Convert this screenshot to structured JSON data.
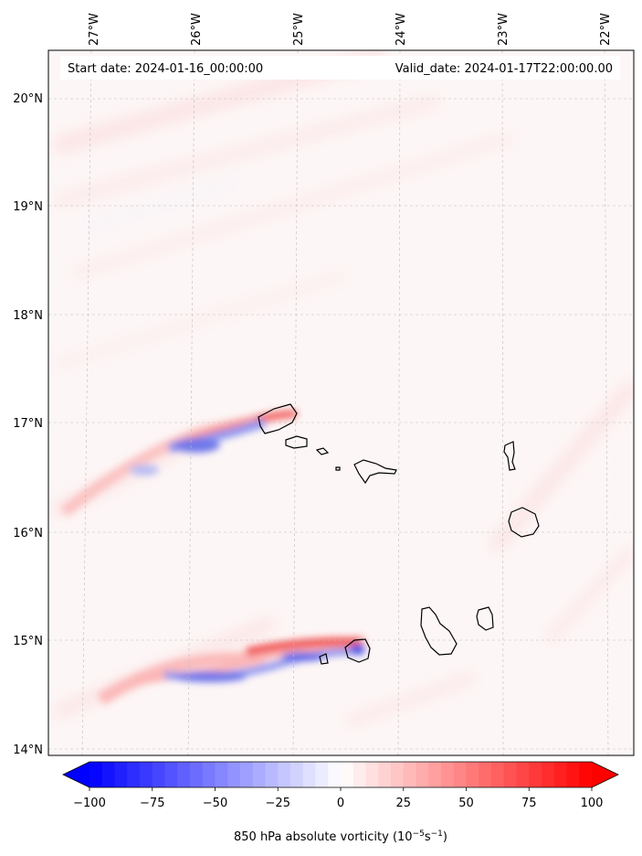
{
  "header": {
    "start_date": "Start date: 2024-01-16_00:00:00",
    "valid_date": "Valid_date: 2024-01-17T22:00:00.00"
  },
  "map": {
    "lon_labels": [
      "27°W",
      "26°W",
      "25°W",
      "24°W",
      "23°W",
      "22°W"
    ],
    "lat_labels": [
      "20°N",
      "19°N",
      "18°N",
      "17°N",
      "16°N",
      "15°N",
      "14°N"
    ],
    "lon_range": [
      -27.2,
      -21.7
    ],
    "lat_range": [
      13.95,
      20.45
    ]
  },
  "colorbar": {
    "ticks": [
      "−100",
      "−75",
      "−50",
      "−25",
      "0",
      "25",
      "50",
      "75",
      "100"
    ],
    "label": "850 hPa absolute vorticity (10",
    "label_exp1": "−5",
    "label_mid": "s",
    "label_exp2": "−1",
    "label_close": ")",
    "min": -100,
    "max": 100,
    "colors": {
      "low": "#0000ff",
      "mid": "#ffffff",
      "high": "#ff0000"
    }
  }
}
